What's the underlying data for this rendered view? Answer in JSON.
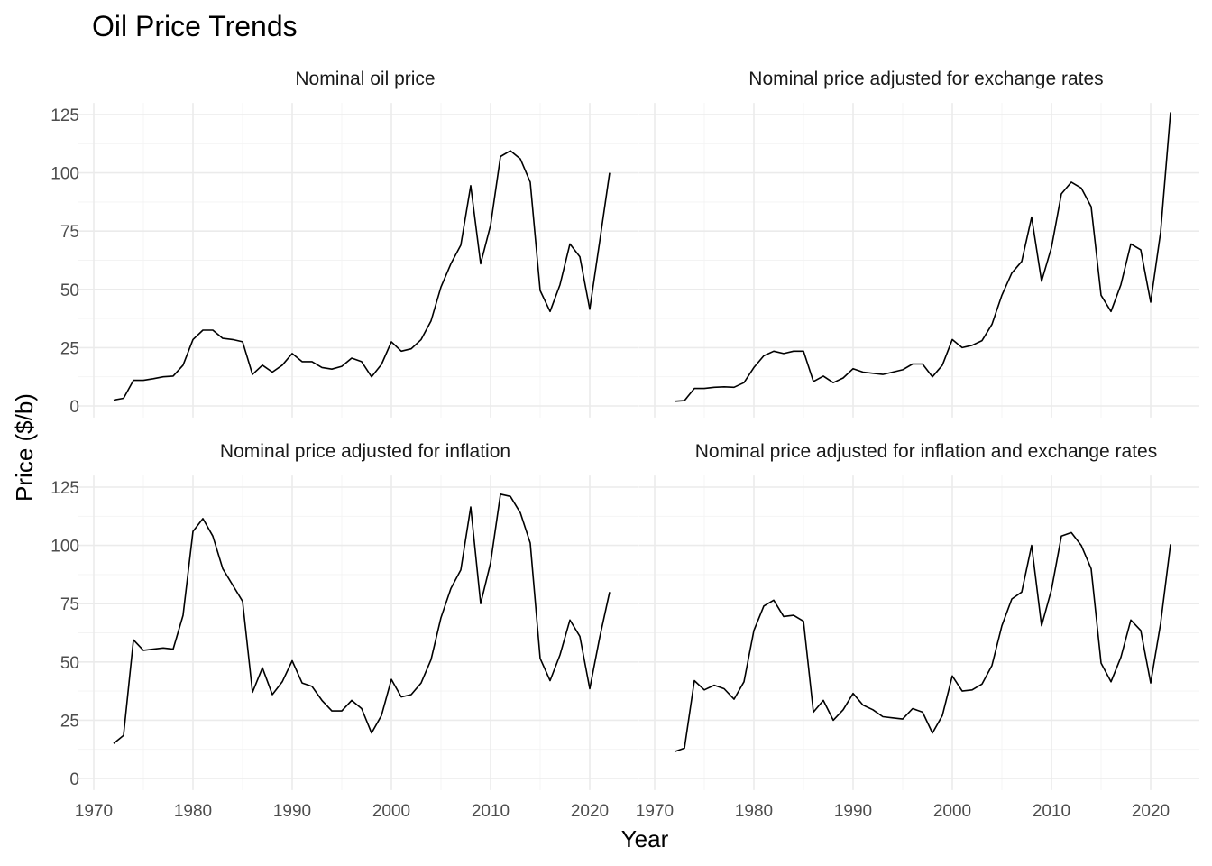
{
  "chart_data": {
    "type": "line",
    "title": "Oil Price Trends",
    "xlabel": "Year",
    "ylabel": "Price ($/b)",
    "xlim": [
      1970,
      2024
    ],
    "ylim": [
      0,
      130
    ],
    "x_ticks": [
      "1970",
      "1980",
      "1990",
      "2000",
      "2010",
      "2020"
    ],
    "y_ticks": [
      "0",
      "25",
      "50",
      "75",
      "100",
      "125"
    ],
    "grid": true,
    "x": [
      1972,
      1973,
      1974,
      1975,
      1976,
      1977,
      1978,
      1979,
      1980,
      1981,
      1982,
      1983,
      1984,
      1985,
      1986,
      1987,
      1988,
      1989,
      1990,
      1991,
      1992,
      1993,
      1994,
      1995,
      1996,
      1997,
      1998,
      1999,
      2000,
      2001,
      2002,
      2003,
      2004,
      2005,
      2006,
      2007,
      2008,
      2009,
      2010,
      2011,
      2012,
      2013,
      2014,
      2015,
      2016,
      2017,
      2018,
      2019,
      2020,
      2021,
      2022
    ],
    "panels": [
      {
        "name": "Nominal oil price",
        "values": [
          2.5,
          3.3,
          11.0,
          11.0,
          11.7,
          12.5,
          12.8,
          17.5,
          28.5,
          32.5,
          32.5,
          29.0,
          28.5,
          27.5,
          13.5,
          17.5,
          14.5,
          17.5,
          22.5,
          19.0,
          19.0,
          16.5,
          15.8,
          17.0,
          20.5,
          19.0,
          12.5,
          17.8,
          27.5,
          23.5,
          24.5,
          28.5,
          36.5,
          51.0,
          61.0,
          69.0,
          94.5,
          61.0,
          77.5,
          107.0,
          109.5,
          106.0,
          96.0,
          49.5,
          40.5,
          52.0,
          69.5,
          64.0,
          41.5,
          70.5,
          100.0
        ]
      },
      {
        "name": "Nominal price adjusted for exchange rates",
        "values": [
          2.0,
          2.3,
          7.5,
          7.5,
          8.0,
          8.2,
          8.0,
          10.0,
          16.5,
          21.5,
          23.5,
          22.5,
          23.5,
          23.5,
          10.5,
          12.8,
          10.0,
          12.0,
          16.0,
          14.5,
          14.0,
          13.5,
          14.5,
          15.5,
          18.0,
          18.0,
          12.5,
          17.5,
          28.5,
          25.0,
          26.0,
          28.0,
          35.0,
          47.5,
          57.0,
          62.0,
          81.0,
          53.5,
          68.0,
          91.0,
          96.0,
          93.5,
          85.5,
          47.5,
          40.5,
          52.0,
          69.5,
          67.0,
          44.5,
          74.5,
          126.0
        ]
      },
      {
        "name": "Nominal price adjusted for inflation",
        "values": [
          15.0,
          18.5,
          59.5,
          55.0,
          55.5,
          56.0,
          55.5,
          70.0,
          106.0,
          111.5,
          104.0,
          90.0,
          83.0,
          76.0,
          37.0,
          47.5,
          36.0,
          41.5,
          50.5,
          41.0,
          39.5,
          33.5,
          29.0,
          29.0,
          33.5,
          30.0,
          19.5,
          27.0,
          42.5,
          35.0,
          36.0,
          41.0,
          51.0,
          69.0,
          81.5,
          89.5,
          116.5,
          75.0,
          92.5,
          122.0,
          121.0,
          114.0,
          101.0,
          51.5,
          42.0,
          53.0,
          68.0,
          61.0,
          38.5,
          60.5,
          80.0
        ]
      },
      {
        "name": "Nominal price adjusted for inflation and exchange rates",
        "values": [
          11.5,
          13.0,
          42.0,
          38.0,
          40.0,
          38.5,
          34.0,
          41.5,
          63.5,
          74.0,
          76.5,
          69.5,
          70.0,
          67.5,
          28.5,
          33.5,
          25.0,
          29.5,
          36.5,
          31.5,
          29.5,
          26.5,
          26.0,
          25.5,
          30.0,
          28.5,
          19.5,
          27.0,
          44.0,
          37.5,
          38.0,
          40.5,
          48.5,
          65.5,
          77.0,
          80.0,
          100.0,
          65.5,
          81.0,
          104.0,
          105.5,
          100.0,
          90.0,
          49.5,
          41.5,
          52.0,
          68.0,
          63.5,
          41.0,
          66.5,
          100.5
        ]
      }
    ]
  }
}
